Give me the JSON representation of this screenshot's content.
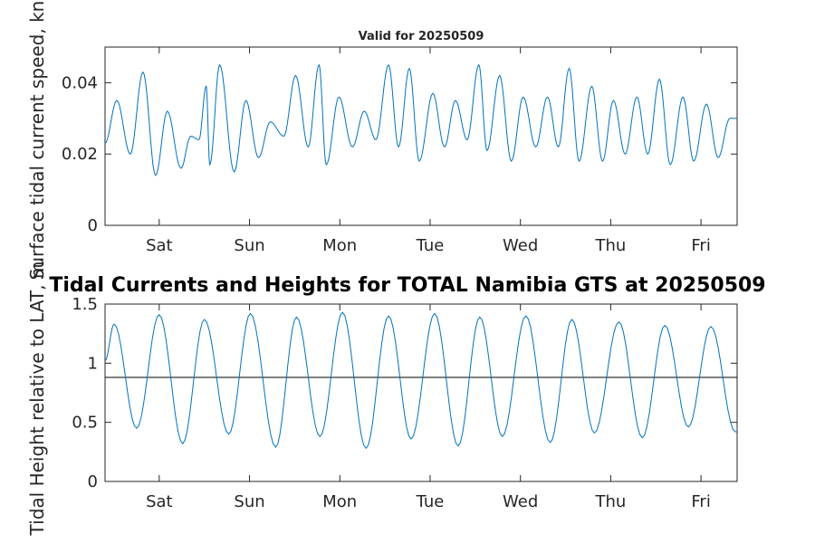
{
  "colors": {
    "series": "#0072BD",
    "reference_line": "#000000",
    "axes": "#262626"
  },
  "chart_data": [
    {
      "type": "line",
      "title": "Valid for 20250509",
      "ylabel": "Surface tidal current speed, kn",
      "xlabel": "",
      "xlim": [
        0,
        7
      ],
      "ylim": [
        0,
        0.05
      ],
      "yticks": [
        0,
        0.02,
        0.04
      ],
      "ytick_labels": [
        "0",
        "0.02",
        "0.04"
      ],
      "xticks": [
        0.6,
        1.6,
        2.6,
        3.6,
        4.6,
        5.6,
        6.6
      ],
      "xtick_labels": [
        "Sat",
        "Sun",
        "Mon",
        "Tue",
        "Wed",
        "Thu",
        "Fri"
      ],
      "grid": false,
      "series": [
        {
          "x": [
            0.0,
            0.13,
            0.28,
            0.42,
            0.56,
            0.69,
            0.84,
            0.95,
            1.04,
            1.12,
            1.16,
            1.27,
            1.43,
            1.56,
            1.7,
            1.83,
            1.98,
            2.11,
            2.25,
            2.37,
            2.45,
            2.59,
            2.74,
            2.87,
            3.0,
            3.14,
            3.25,
            3.37,
            3.48,
            3.63,
            3.76,
            3.88,
            4.01,
            4.14,
            4.23,
            4.37,
            4.5,
            4.63,
            4.77,
            4.9,
            5.02,
            5.14,
            5.25,
            5.39,
            5.51,
            5.63,
            5.76,
            5.89,
            6.01,
            6.14,
            6.26,
            6.4,
            6.52,
            6.66,
            6.79,
            6.92,
            7.0
          ],
          "y": [
            0.023,
            0.035,
            0.02,
            0.043,
            0.014,
            0.032,
            0.016,
            0.025,
            0.024,
            0.039,
            0.017,
            0.045,
            0.015,
            0.035,
            0.019,
            0.029,
            0.025,
            0.042,
            0.022,
            0.045,
            0.017,
            0.036,
            0.022,
            0.032,
            0.024,
            0.045,
            0.022,
            0.044,
            0.018,
            0.037,
            0.022,
            0.035,
            0.024,
            0.045,
            0.021,
            0.042,
            0.018,
            0.036,
            0.022,
            0.036,
            0.022,
            0.044,
            0.018,
            0.039,
            0.018,
            0.035,
            0.02,
            0.036,
            0.02,
            0.041,
            0.017,
            0.036,
            0.018,
            0.034,
            0.019,
            0.03,
            0.03
          ]
        }
      ]
    },
    {
      "type": "line",
      "title": "Tidal Currents and Heights for TOTAL Namibia GTS at 20250509",
      "ylabel": "Tidal Height relative to LAT, m",
      "xlabel": "",
      "xlim": [
        0,
        7
      ],
      "ylim": [
        0,
        1.5
      ],
      "yticks": [
        0,
        0.5,
        1,
        1.5
      ],
      "ytick_labels": [
        "0",
        "0.5",
        "1",
        "1.5"
      ],
      "xticks": [
        0.6,
        1.6,
        2.6,
        3.6,
        4.6,
        5.6,
        6.6
      ],
      "xtick_labels": [
        "Sat",
        "Sun",
        "Mon",
        "Tue",
        "Wed",
        "Thu",
        "Fri"
      ],
      "grid": false,
      "reference_line_y": 0.88,
      "series": [
        {
          "x": [
            0.0,
            0.1,
            0.35,
            0.6,
            0.86,
            1.1,
            1.37,
            1.61,
            1.89,
            2.12,
            2.38,
            2.63,
            2.89,
            3.14,
            3.39,
            3.65,
            3.91,
            4.15,
            4.4,
            4.66,
            4.93,
            5.17,
            5.42,
            5.69,
            5.95,
            6.2,
            6.46,
            6.71,
            6.98,
            7.0
          ],
          "y": [
            1.02,
            1.33,
            0.45,
            1.41,
            0.32,
            1.37,
            0.4,
            1.42,
            0.29,
            1.39,
            0.38,
            1.43,
            0.28,
            1.4,
            0.36,
            1.42,
            0.3,
            1.39,
            0.38,
            1.4,
            0.33,
            1.37,
            0.41,
            1.35,
            0.37,
            1.32,
            0.46,
            1.31,
            0.42,
            0.42
          ]
        }
      ]
    }
  ]
}
